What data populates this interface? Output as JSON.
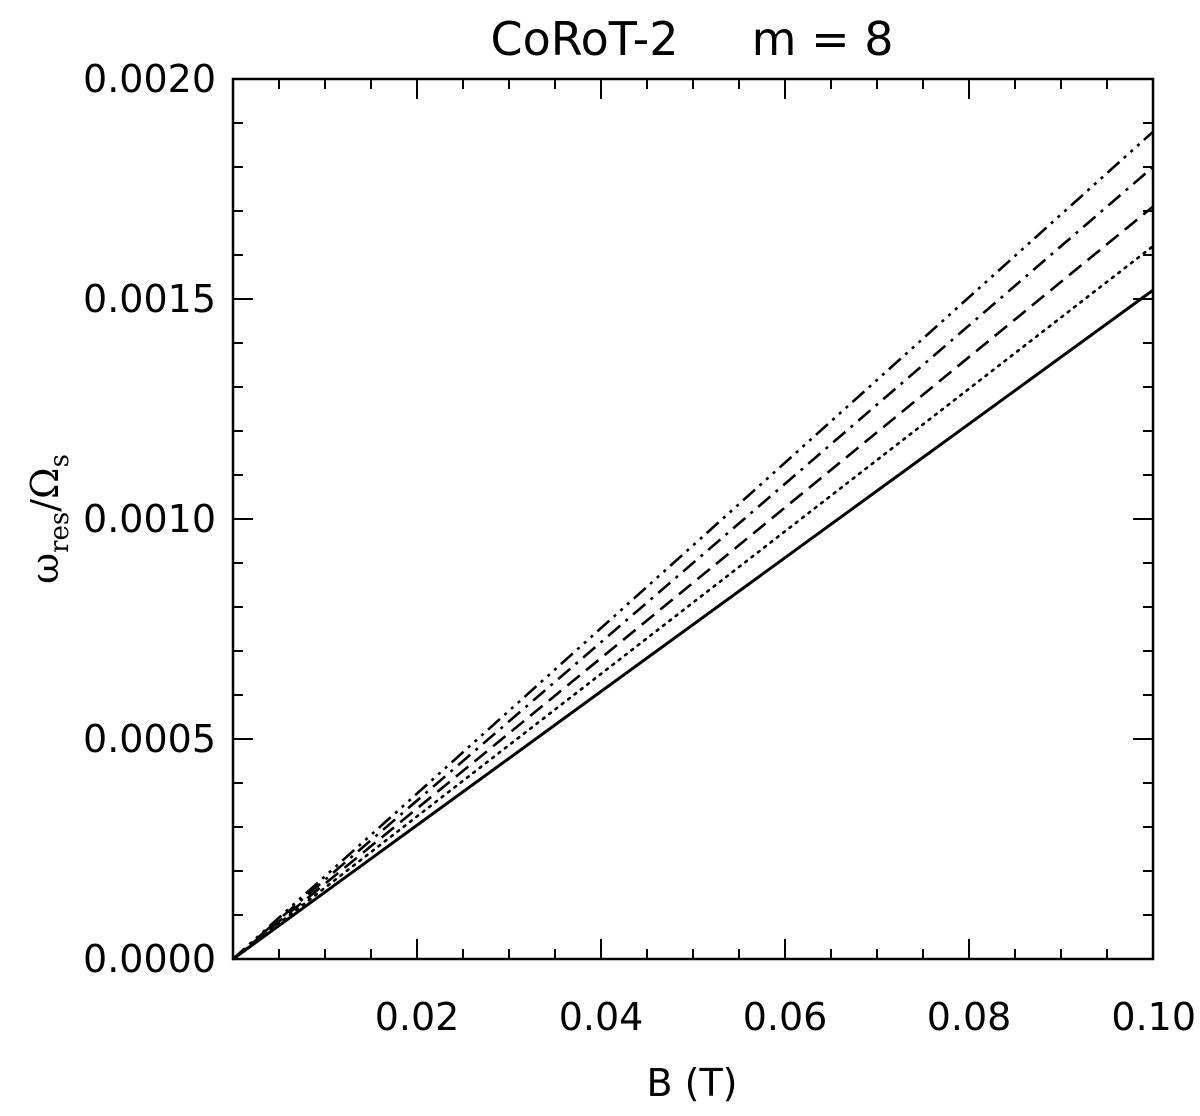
{
  "chart_data": {
    "type": "line",
    "title": "CoRoT-2     m = 8",
    "xlabel": "B (T)",
    "ylabel": {
      "main": "ω",
      "main_sub": "res",
      "sep": "/",
      "denom": "Ω",
      "denom_sub": "s"
    },
    "xlim": [
      0.0,
      0.1
    ],
    "ylim": [
      0.0,
      0.002
    ],
    "x_ticks": [
      0.02,
      0.04,
      0.06,
      0.08,
      0.1
    ],
    "x_tick_labels": [
      "0.02",
      "0.04",
      "0.06",
      "0.08",
      "0.10"
    ],
    "y_ticks": [
      0.0,
      0.0005,
      0.001,
      0.0015,
      0.002
    ],
    "y_tick_labels": [
      "0.0000",
      "0.0005",
      "0.0010",
      "0.0015",
      "0.0020"
    ],
    "x_minor_step": 0.005,
    "y_minor_step": 0.0001,
    "grid": false,
    "series": [
      {
        "style": "solid",
        "x": [
          0.0,
          0.1
        ],
        "y": [
          0.0,
          0.00152
        ]
      },
      {
        "style": "dotted",
        "x": [
          0.0,
          0.1
        ],
        "y": [
          0.0,
          0.00162
        ]
      },
      {
        "style": "dashed",
        "x": [
          0.0,
          0.1
        ],
        "y": [
          0.0,
          0.00171
        ]
      },
      {
        "style": "dash-dot",
        "x": [
          0.0,
          0.1
        ],
        "y": [
          0.0,
          0.0018
        ]
      },
      {
        "style": "dash-dot-dot-dot",
        "x": [
          0.0,
          0.1
        ],
        "y": [
          0.0,
          0.00188
        ]
      }
    ]
  }
}
